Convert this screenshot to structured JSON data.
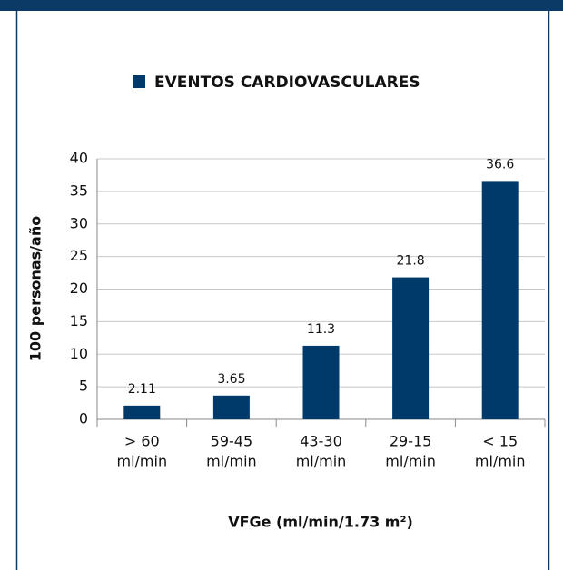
{
  "chart_data": {
    "type": "bar",
    "legend": "EVENTOS CARDIOVASCULARES",
    "y_label": "100 personas/año",
    "x_label": "VFGe (ml/min/1.73 m²)",
    "categories": [
      [
        "> 60",
        "ml/min"
      ],
      [
        "59-45",
        "ml/min"
      ],
      [
        "43-30",
        "ml/min"
      ],
      [
        "29-15",
        "ml/min"
      ],
      [
        "< 15",
        "ml/min"
      ]
    ],
    "values": [
      2.11,
      3.65,
      11.3,
      21.8,
      36.6
    ],
    "color": "#003a6b",
    "ylim": [
      0,
      40
    ],
    "yticks": [
      0,
      5,
      10,
      15,
      20,
      25,
      30,
      35,
      40
    ],
    "grid": true
  }
}
